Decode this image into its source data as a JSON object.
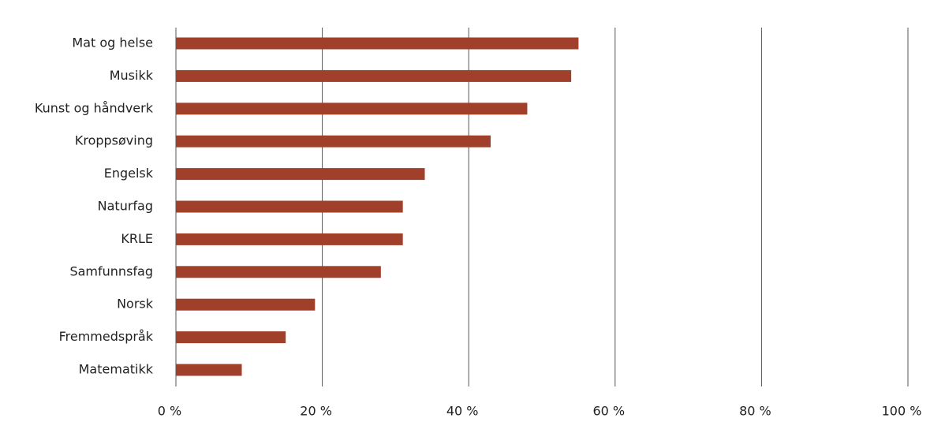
{
  "chart_data": {
    "type": "bar",
    "categories": [
      "Mat og helse",
      "Musikk",
      "Kunst og håndverk",
      "Kroppsøving",
      "Engelsk",
      "Naturfag",
      "KRLE",
      "Samfunnsfag",
      "Norsk",
      "Fremmedspråk",
      "Matematikk"
    ],
    "values": [
      55,
      54,
      48,
      43,
      34,
      31,
      31,
      28,
      19,
      15,
      9
    ],
    "color": "#a0402b",
    "xlim": [
      0,
      100
    ],
    "xticks": [
      {
        "value": 0,
        "label": "0 %"
      },
      {
        "value": 20,
        "label": "20 %"
      },
      {
        "value": 40,
        "label": "40 %"
      },
      {
        "value": 60,
        "label": "60 %"
      },
      {
        "value": 80,
        "label": "80 %"
      },
      {
        "value": 100,
        "label": "100 %"
      }
    ],
    "grid": true
  }
}
